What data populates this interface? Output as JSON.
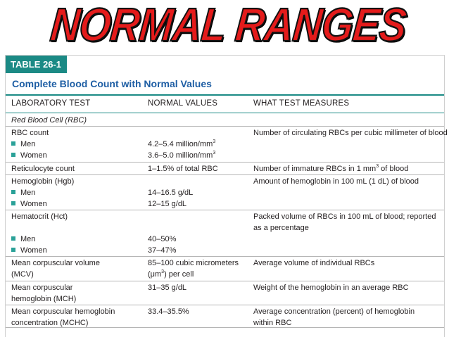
{
  "banner": {
    "title": "NORMAL RANGES"
  },
  "table": {
    "tag": "TABLE 26-1",
    "title": "Complete Blood Count with Normal Values",
    "headers": [
      "LABORATORY TEST",
      "NORMAL VALUES",
      "WHAT TEST MEASURES"
    ],
    "section": "Red Blood Cell (RBC)",
    "rbc": {
      "test": "RBC count",
      "measures": "Number of circulating RBCs per cubic millimeter of blood",
      "men": "Men",
      "men_value": "4.2–5.4 million/mm",
      "men_sup": "3",
      "women": "Women",
      "women_value": "3.6–5.0 million/mm",
      "women_sup": "3"
    },
    "retic": {
      "test": "Reticulocyte count",
      "value": "1–1.5% of total RBC",
      "measures_a": "Number of immature RBCs in 1 mm",
      "measures_sup": "3",
      "measures_b": " of blood"
    },
    "hgb": {
      "test": "Hemoglobin (Hgb)",
      "measures": "Amount of hemoglobin in 100 mL (1 dL) of blood",
      "men": "Men",
      "men_value": "14–16.5 g/dL",
      "women": "Women",
      "women_value": "12–15 g/dL"
    },
    "hct": {
      "test": "Hematocrit (Hct)",
      "measures_line1": "Packed volume of RBCs in 100 mL of blood; reported",
      "measures_line2": "as a percentage",
      "men": "Men",
      "men_value": "40–50%",
      "women": "Women",
      "women_value": "37–47%"
    },
    "mcv": {
      "test_line1": "Mean corpuscular volume",
      "test_line2": "(MCV)",
      "value_line1": "85–100 cubic micrometers",
      "value_line2_a": "(μm",
      "value_line2_sup": "3",
      "value_line2_b": ") per cell",
      "measures": "Average volume of individual RBCs"
    },
    "mch": {
      "test_line1": "Mean corpuscular",
      "test_line2": "hemoglobin (MCH)",
      "value": "31–35 g/dL",
      "measures": "Weight of the hemoglobin in an average RBC"
    },
    "mchc": {
      "test_line1": "Mean corpuscular hemoglobin",
      "test_line2": "concentration (MCHC)",
      "value": "33.4–35.5%",
      "measures_line1": "Average concentration (percent) of hemoglobin",
      "measures_line2": "within RBC"
    }
  },
  "colors": {
    "banner_red": "#e41b1b",
    "teal": "#1b8a85",
    "title_blue": "#1e5ea4"
  }
}
